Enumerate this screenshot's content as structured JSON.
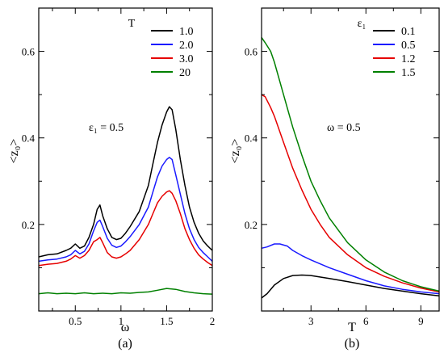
{
  "colors": {
    "black": "#000000",
    "blue": "#1a1aff",
    "red": "#e60000",
    "green": "#008000"
  },
  "chart_data": [
    {
      "type": "line",
      "panel_label": "(a)",
      "xlabel": "ω",
      "ylabel": "<z₀>",
      "xlim": [
        0.1,
        2.0
      ],
      "ylim": [
        0.0,
        0.7
      ],
      "xticks": [
        0.5,
        1.0,
        1.5,
        2.0
      ],
      "xtick_labels": [
        "0.5",
        "1",
        "1.5",
        "2"
      ],
      "yticks": [
        0.2,
        0.4,
        0.6
      ],
      "ytick_labels": [
        "0.2",
        "0.4",
        "0.6"
      ],
      "grid": false,
      "legend_title": "T",
      "legend_position": "top-right",
      "annotation": "ε₁ = 0.5",
      "series": [
        {
          "name": "1.0",
          "color": "#000000",
          "x": [
            0.1,
            0.2,
            0.3,
            0.4,
            0.45,
            0.5,
            0.55,
            0.6,
            0.65,
            0.7,
            0.74,
            0.77,
            0.8,
            0.85,
            0.9,
            0.95,
            1.0,
            1.05,
            1.1,
            1.2,
            1.3,
            1.35,
            1.4,
            1.45,
            1.5,
            1.53,
            1.56,
            1.6,
            1.65,
            1.7,
            1.75,
            1.8,
            1.85,
            1.9,
            1.95,
            2.0
          ],
          "y": [
            0.125,
            0.13,
            0.132,
            0.14,
            0.145,
            0.155,
            0.145,
            0.15,
            0.17,
            0.2,
            0.235,
            0.245,
            0.22,
            0.19,
            0.17,
            0.165,
            0.168,
            0.18,
            0.195,
            0.23,
            0.29,
            0.34,
            0.39,
            0.43,
            0.46,
            0.472,
            0.465,
            0.42,
            0.35,
            0.29,
            0.24,
            0.205,
            0.18,
            0.162,
            0.15,
            0.14
          ]
        },
        {
          "name": "2.0",
          "color": "#1a1aff",
          "x": [
            0.1,
            0.2,
            0.3,
            0.4,
            0.45,
            0.5,
            0.55,
            0.6,
            0.65,
            0.7,
            0.74,
            0.77,
            0.8,
            0.85,
            0.9,
            0.95,
            1.0,
            1.05,
            1.1,
            1.2,
            1.3,
            1.35,
            1.4,
            1.45,
            1.5,
            1.53,
            1.56,
            1.6,
            1.65,
            1.7,
            1.75,
            1.8,
            1.85,
            1.9,
            1.95,
            2.0
          ],
          "y": [
            0.115,
            0.118,
            0.12,
            0.125,
            0.13,
            0.14,
            0.132,
            0.138,
            0.155,
            0.185,
            0.205,
            0.21,
            0.195,
            0.168,
            0.152,
            0.147,
            0.15,
            0.16,
            0.172,
            0.2,
            0.24,
            0.275,
            0.31,
            0.335,
            0.35,
            0.355,
            0.35,
            0.315,
            0.27,
            0.225,
            0.19,
            0.165,
            0.147,
            0.135,
            0.125,
            0.115
          ]
        },
        {
          "name": "3.0",
          "color": "#e60000",
          "x": [
            0.1,
            0.2,
            0.3,
            0.4,
            0.45,
            0.5,
            0.55,
            0.6,
            0.65,
            0.7,
            0.74,
            0.77,
            0.8,
            0.85,
            0.9,
            0.95,
            1.0,
            1.05,
            1.1,
            1.2,
            1.3,
            1.35,
            1.4,
            1.45,
            1.5,
            1.53,
            1.56,
            1.6,
            1.65,
            1.7,
            1.75,
            1.8,
            1.85,
            1.9,
            1.95,
            2.0
          ],
          "y": [
            0.105,
            0.108,
            0.11,
            0.115,
            0.12,
            0.128,
            0.122,
            0.128,
            0.14,
            0.16,
            0.165,
            0.17,
            0.158,
            0.135,
            0.125,
            0.122,
            0.125,
            0.132,
            0.14,
            0.165,
            0.2,
            0.225,
            0.25,
            0.265,
            0.275,
            0.278,
            0.272,
            0.255,
            0.225,
            0.19,
            0.165,
            0.145,
            0.13,
            0.12,
            0.112,
            0.105
          ]
        },
        {
          "name": "20",
          "color": "#008000",
          "x": [
            0.1,
            0.2,
            0.3,
            0.4,
            0.5,
            0.6,
            0.7,
            0.8,
            0.9,
            1.0,
            1.1,
            1.2,
            1.3,
            1.4,
            1.5,
            1.6,
            1.7,
            1.8,
            1.9,
            2.0
          ],
          "y": [
            0.04,
            0.042,
            0.04,
            0.041,
            0.04,
            0.042,
            0.04,
            0.041,
            0.04,
            0.042,
            0.041,
            0.043,
            0.044,
            0.048,
            0.052,
            0.05,
            0.045,
            0.042,
            0.04,
            0.039
          ]
        }
      ]
    },
    {
      "type": "line",
      "panel_label": "(b)",
      "xlabel": "T",
      "ylabel": "<z₀>",
      "xlim": [
        0.3,
        10.0
      ],
      "ylim": [
        0.0,
        0.7
      ],
      "xticks": [
        3,
        6,
        9
      ],
      "xtick_labels": [
        "3",
        "6",
        "9"
      ],
      "yticks": [
        0.2,
        0.4,
        0.6
      ],
      "ytick_labels": [
        "0.2",
        "0.4",
        "0.6"
      ],
      "grid": false,
      "legend_title": "ε₁",
      "legend_position": "top-right",
      "annotation": "ω = 0.5",
      "series": [
        {
          "name": "0.1",
          "color": "#000000",
          "x": [
            0.3,
            0.6,
            1.0,
            1.5,
            2.0,
            2.5,
            3.0,
            4.0,
            5.0,
            6.0,
            7.0,
            8.0,
            9.0,
            10.0
          ],
          "y": [
            0.03,
            0.04,
            0.06,
            0.075,
            0.082,
            0.083,
            0.082,
            0.075,
            0.068,
            0.06,
            0.052,
            0.046,
            0.04,
            0.035
          ]
        },
        {
          "name": "0.5",
          "color": "#1a1aff",
          "x": [
            0.3,
            0.6,
            1.0,
            1.3,
            1.7,
            2.0,
            2.5,
            3.0,
            4.0,
            5.0,
            6.0,
            7.0,
            8.0,
            9.0,
            10.0
          ],
          "y": [
            0.145,
            0.148,
            0.155,
            0.155,
            0.15,
            0.14,
            0.128,
            0.118,
            0.1,
            0.085,
            0.07,
            0.058,
            0.05,
            0.044,
            0.04
          ]
        },
        {
          "name": "1.2",
          "color": "#e60000",
          "x": [
            0.3,
            0.5,
            0.8,
            1.0,
            1.5,
            2.0,
            2.5,
            3.0,
            3.5,
            4.0,
            5.0,
            6.0,
            7.0,
            8.0,
            9.0,
            10.0
          ],
          "y": [
            0.5,
            0.495,
            0.47,
            0.45,
            0.39,
            0.33,
            0.28,
            0.235,
            0.2,
            0.17,
            0.13,
            0.1,
            0.08,
            0.065,
            0.053,
            0.044
          ]
        },
        {
          "name": "1.5",
          "color": "#008000",
          "x": [
            0.3,
            0.5,
            0.8,
            1.0,
            1.5,
            2.0,
            2.5,
            3.0,
            3.5,
            4.0,
            5.0,
            6.0,
            7.0,
            8.0,
            9.0,
            10.0
          ],
          "y": [
            0.632,
            0.62,
            0.6,
            0.575,
            0.5,
            0.425,
            0.36,
            0.3,
            0.255,
            0.215,
            0.158,
            0.118,
            0.09,
            0.07,
            0.056,
            0.046
          ]
        }
      ]
    }
  ]
}
